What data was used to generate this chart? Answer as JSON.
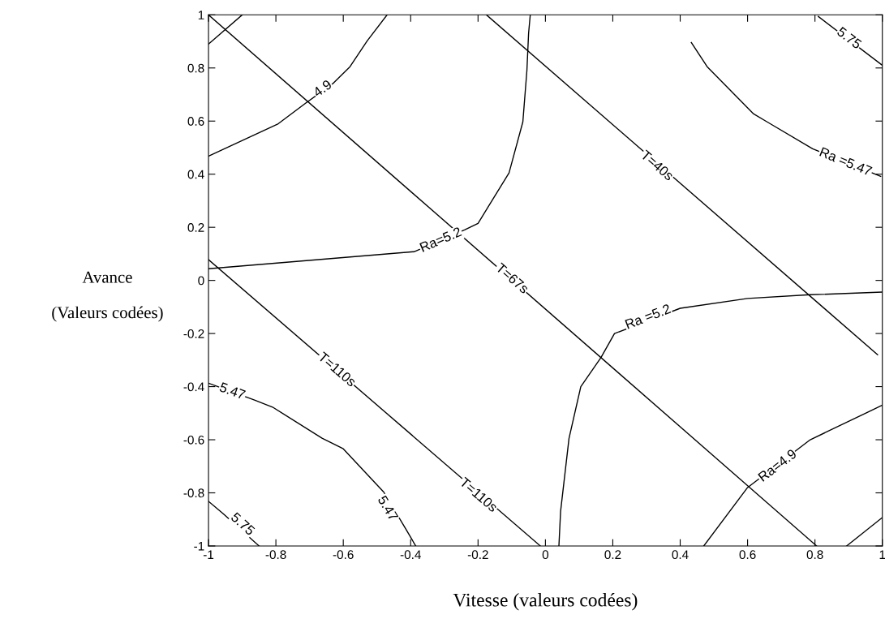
{
  "chart_data": {
    "type": "line",
    "xlabel": "Vitesse (valeurs codées)",
    "ylabel": "Avance\n\n(Valeurs codées)",
    "xlim": [
      -1,
      1
    ],
    "ylim": [
      -1,
      1
    ],
    "xticks": [
      -1,
      -0.8,
      -0.6,
      -0.4,
      -0.2,
      0,
      0.2,
      0.4,
      0.6,
      0.8,
      1
    ],
    "yticks": [
      -1,
      -0.8,
      -0.6,
      -0.4,
      -0.2,
      0,
      0.2,
      0.4,
      0.6,
      0.8,
      1
    ],
    "grid": false,
    "legend": false,
    "marker": "none",
    "line_style": "solid",
    "series": [
      {
        "color": "#000000",
        "x": [
          -0.175,
          0.986
        ],
        "values": [
          1,
          -0.28
        ]
      },
      {
        "color": "#000000",
        "x": [
          -1,
          0.805
        ],
        "values": [
          1,
          -1
        ]
      },
      {
        "color": "#000000",
        "x": [
          -1,
          -0.015
        ],
        "values": [
          0.078,
          -1
        ]
      },
      {
        "color": "#000000",
        "x": [
          -1,
          -0.9
        ],
        "values": [
          0.89,
          1
        ]
      },
      {
        "color": "#000000",
        "x": [
          -1,
          -0.793,
          -0.712,
          -0.632,
          -0.58,
          -0.529,
          -0.47
        ],
        "values": [
          0.468,
          0.59,
          0.667,
          0.74,
          0.805,
          0.902,
          1
        ]
      },
      {
        "color": "#000000",
        "x": [
          -1,
          -0.39,
          -0.24,
          -0.2,
          -0.108,
          -0.067,
          -0.055,
          -0.05,
          -0.045
        ],
        "values": [
          0.044,
          0.108,
          0.19,
          0.215,
          0.405,
          0.597,
          0.79,
          0.93,
          1
        ]
      },
      {
        "color": "#000000",
        "x": [
          0.04,
          0.045,
          0.07,
          0.105,
          0.165,
          0.205,
          0.4,
          0.6,
          0.786,
          1
        ],
        "values": [
          -1,
          -0.87,
          -0.595,
          -0.4,
          -0.29,
          -0.2,
          -0.105,
          -0.068,
          -0.054,
          -0.044
        ]
      },
      {
        "color": "#000000",
        "x": [
          0.47,
          0.6,
          0.786,
          1
        ],
        "values": [
          -1,
          -0.78,
          -0.6,
          -0.47
        ]
      },
      {
        "color": "#000000",
        "x": [
          0.894,
          1
        ],
        "values": [
          -1,
          -0.893
        ]
      },
      {
        "color": "#000000",
        "x": [
          0.433,
          0.48,
          0.618,
          0.658,
          0.793,
          0.995
        ],
        "values": [
          0.896,
          0.805,
          0.627,
          0.597,
          0.496,
          0.392
        ]
      },
      {
        "color": "#000000",
        "x": [
          0.81,
          1
        ],
        "values": [
          0.994,
          0.81
        ]
      },
      {
        "color": "#000000",
        "x": [
          -1,
          -0.865,
          -0.81,
          -0.663,
          -0.6,
          -0.48,
          -0.415,
          -0.385
        ],
        "values": [
          -0.387,
          -0.45,
          -0.477,
          -0.594,
          -0.634,
          -0.797,
          -0.935,
          -1
        ]
      },
      {
        "color": "#000000",
        "x": [
          -1,
          -0.957,
          -0.85
        ],
        "values": [
          -0.832,
          -0.878,
          -1
        ]
      }
    ],
    "annotations": [
      {
        "text": "T=40s",
        "x": 0.33,
        "y": 0.43
      },
      {
        "text": "T=67s",
        "x": -0.1,
        "y": 0.005
      },
      {
        "text": "T=110s",
        "x": -0.62,
        "y": -0.338
      },
      {
        "text": "T=110s",
        "x": -0.2,
        "y": -0.81
      },
      {
        "text": "4.9",
        "x": -0.66,
        "y": 0.72
      },
      {
        "text": "Ra=5.2",
        "x": -0.31,
        "y": 0.15
      },
      {
        "text": "Ra =5.2",
        "x": 0.305,
        "y": -0.14
      },
      {
        "text": "Ra=4.9",
        "x": 0.69,
        "y": -0.7
      },
      {
        "text": "Ra =5.47",
        "x": 0.89,
        "y": 0.444
      },
      {
        "text": "5.75",
        "x": 0.9,
        "y": 0.91
      },
      {
        "text": "5.47",
        "x": -0.93,
        "y": -0.42
      },
      {
        "text": "5.47",
        "x": -0.47,
        "y": -0.86
      },
      {
        "text": "5.75",
        "x": -0.9,
        "y": -0.92
      }
    ]
  }
}
